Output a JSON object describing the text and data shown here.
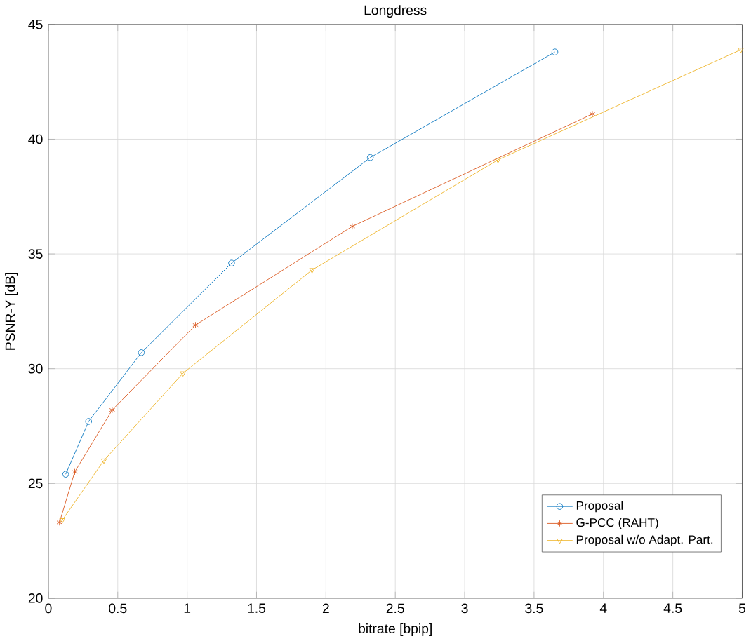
{
  "chart_data": {
    "type": "line",
    "title": "Longdress",
    "xlabel": "bitrate [bpip]",
    "ylabel": "PSNR-Y [dB]",
    "xlim": [
      0,
      5
    ],
    "ylim": [
      20,
      45
    ],
    "xticks": [
      0,
      0.5,
      1,
      1.5,
      2,
      2.5,
      3,
      3.5,
      4,
      4.5,
      5
    ],
    "yticks": [
      20,
      25,
      30,
      35,
      40,
      45
    ],
    "grid": true,
    "legend": "bottom right",
    "line_style": "solid",
    "series": [
      {
        "name": "Proposal",
        "color": "#0072bd",
        "marker": "circle",
        "x": [
          0.125,
          0.29,
          0.67,
          1.32,
          2.32,
          3.65
        ],
        "values": [
          25.4,
          27.7,
          30.7,
          34.6,
          39.2,
          43.8
        ]
      },
      {
        "name": "G-PCC (RAHT)",
        "color": "#d95319",
        "marker": "cross",
        "x": [
          0.08,
          0.19,
          0.46,
          1.06,
          2.19,
          3.92
        ],
        "values": [
          23.3,
          25.5,
          28.2,
          31.9,
          36.2,
          41.1
        ]
      },
      {
        "name": "Proposal w/o Adapt. Part.",
        "color": "#edb120",
        "marker": "triangle",
        "x": [
          0.1,
          0.4,
          0.97,
          1.9,
          3.24,
          4.99
        ],
        "values": [
          23.4,
          26.0,
          29.8,
          34.3,
          39.1,
          43.9
        ]
      }
    ]
  }
}
